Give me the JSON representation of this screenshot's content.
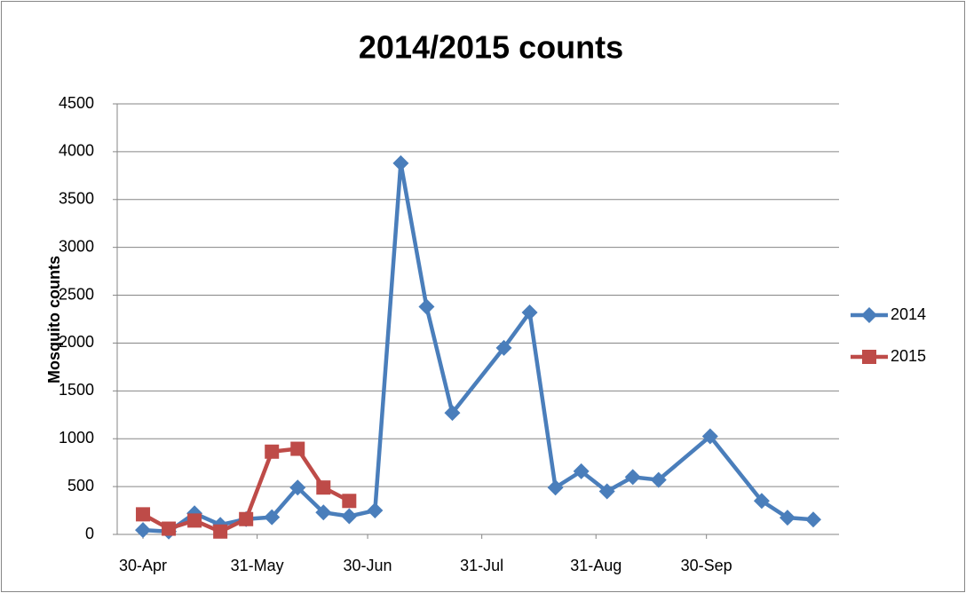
{
  "chart_data": {
    "type": "line",
    "title": "2014/2015 counts",
    "y_label": "Mosquito counts",
    "xlim": [
      -7,
      189
    ],
    "xticks": [
      {
        "value": 0,
        "label": "30-Apr"
      },
      {
        "value": 31,
        "label": "31-May"
      },
      {
        "value": 61,
        "label": "30-Jun"
      },
      {
        "value": 92,
        "label": "31-Jul"
      },
      {
        "value": 123,
        "label": "31-Aug"
      },
      {
        "value": 153,
        "label": "30-Sep"
      }
    ],
    "ylim": [
      0,
      4500
    ],
    "yticks": [
      0,
      500,
      1000,
      1500,
      2000,
      2500,
      3000,
      3500,
      4000,
      4500
    ],
    "grid": true,
    "legend": "right",
    "series": [
      {
        "name": "2014",
        "color": "#4a7ebb",
        "marker": "diamond",
        "x": [
          0,
          7,
          14,
          21,
          28,
          35,
          42,
          49,
          56,
          63,
          70,
          77,
          84,
          98,
          105,
          112,
          119,
          126,
          133,
          140,
          154,
          168,
          175,
          182
        ],
        "values": [
          45,
          30,
          220,
          100,
          160,
          180,
          490,
          230,
          190,
          250,
          3880,
          2380,
          1270,
          1950,
          2320,
          490,
          660,
          450,
          600,
          570,
          1025,
          350,
          175,
          155
        ]
      },
      {
        "name": "2015",
        "color": "#be4b48",
        "marker": "square",
        "x": [
          0,
          7,
          14,
          21,
          28,
          35,
          42,
          49,
          56
        ],
        "values": [
          210,
          60,
          145,
          30,
          160,
          865,
          895,
          490,
          350
        ]
      }
    ]
  }
}
